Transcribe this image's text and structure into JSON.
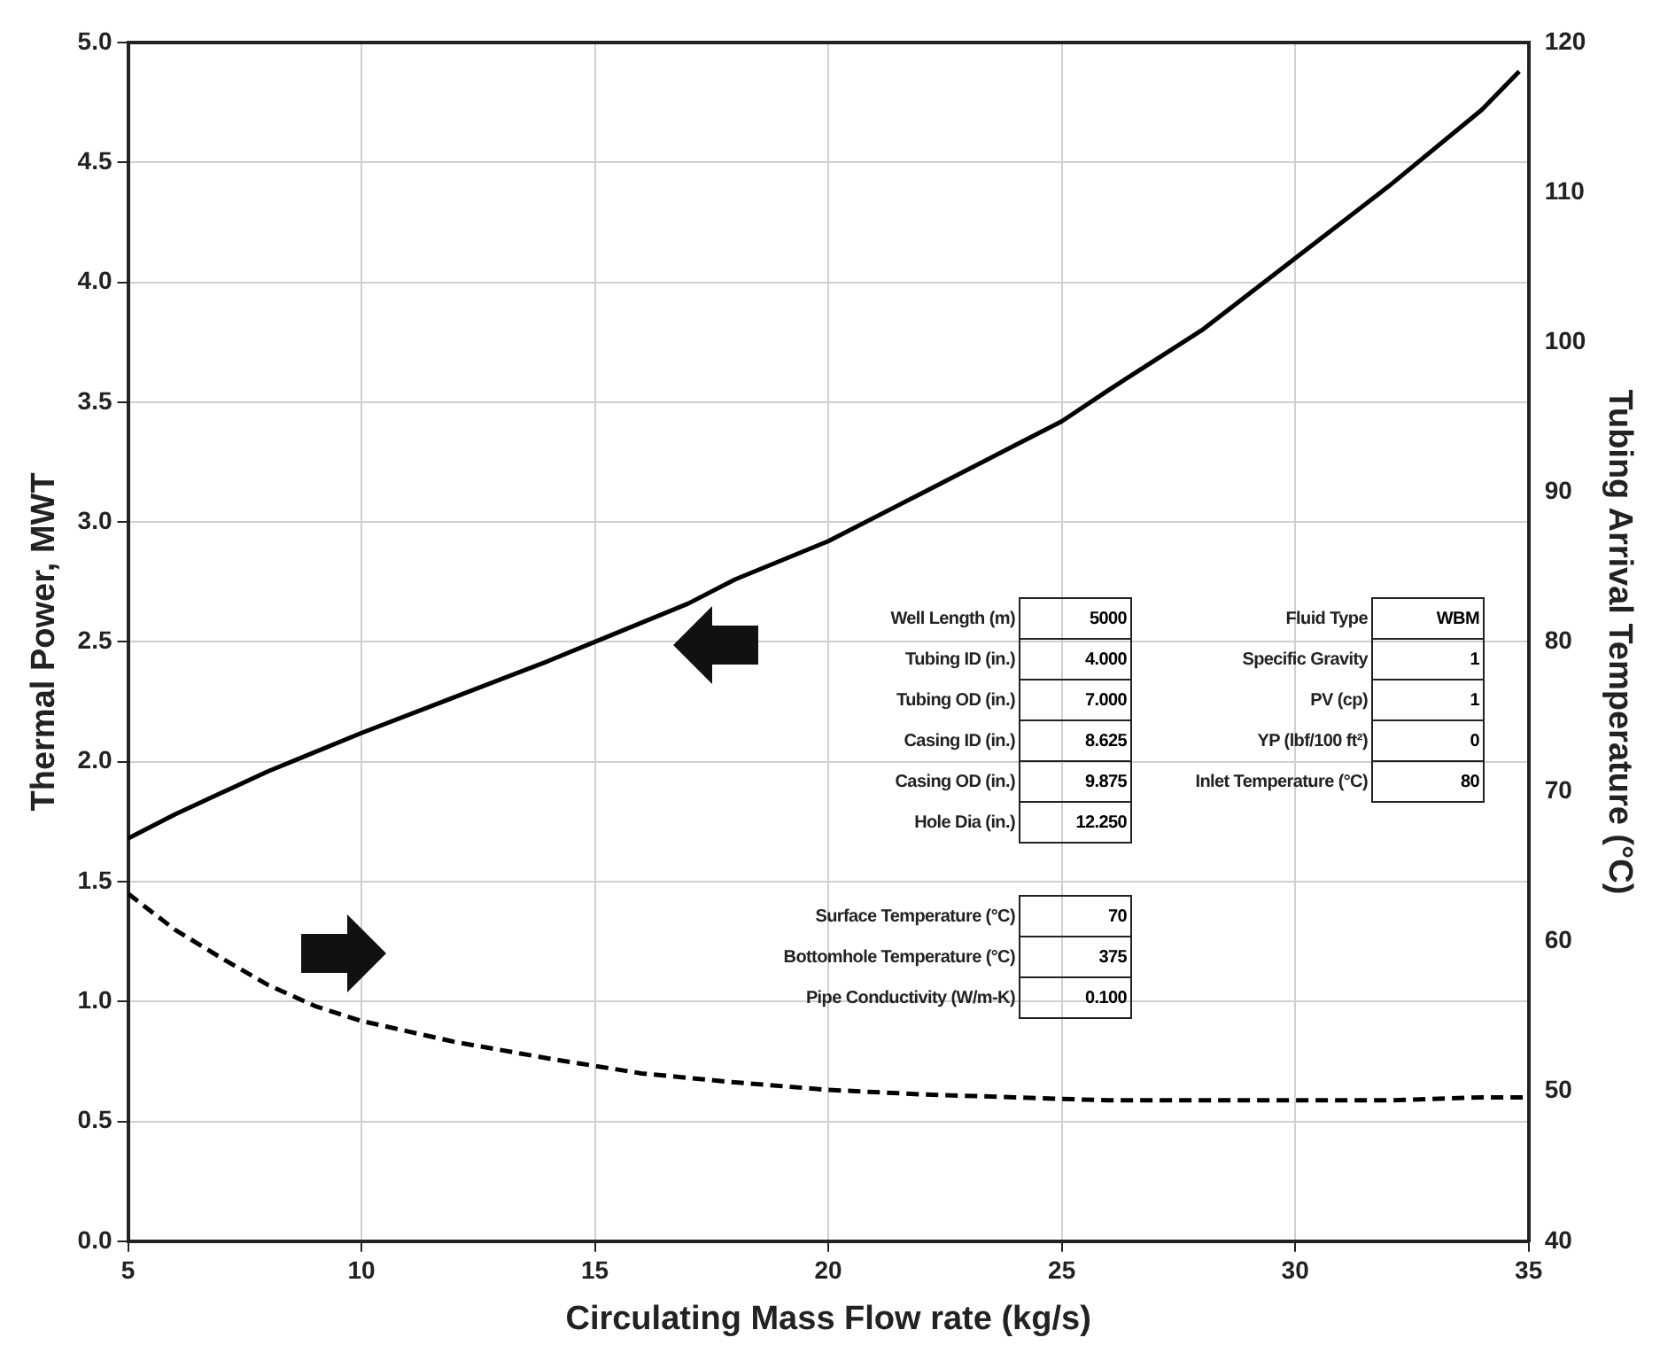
{
  "chart_data": {
    "type": "line",
    "xlabel": "Circulating Mass Flow rate (kg/s)",
    "ylabel": "Thermal Power, MWT",
    "y2label": "Tubing Arrival Temperature (°C)",
    "xlim": [
      5,
      35
    ],
    "xticks": [
      5,
      10,
      15,
      20,
      25,
      30,
      35
    ],
    "ylim": [
      0,
      5
    ],
    "yticks": [
      {
        "value": 0,
        "label": "0.0"
      },
      {
        "value": 0.5,
        "label": "0.5"
      },
      {
        "value": 1,
        "label": "1.0"
      },
      {
        "value": 1.5,
        "label": "1.5"
      },
      {
        "value": 2,
        "label": "2.0"
      },
      {
        "value": 2.5,
        "label": "2.5"
      },
      {
        "value": 3,
        "label": "3.0"
      },
      {
        "value": 3.5,
        "label": "3.5"
      },
      {
        "value": 4,
        "label": "4.0"
      },
      {
        "value": 4.5,
        "label": "4.5"
      },
      {
        "value": 5,
        "label": "5.0"
      }
    ],
    "y2lim": [
      40,
      120
    ],
    "y2ticks": [
      40,
      50,
      60,
      70,
      80,
      90,
      100,
      110,
      120
    ],
    "grid": true,
    "legend": false,
    "marker": "none",
    "series": [
      {
        "color": "#000000",
        "line_style": "solid",
        "x": [
          5,
          6,
          7,
          8,
          9,
          10,
          12,
          14,
          15,
          17,
          18,
          20,
          22,
          24,
          25,
          26,
          28,
          30,
          32,
          34,
          34.8
        ],
        "values": [
          1.68,
          1.78,
          1.87,
          1.96,
          2.04,
          2.12,
          2.27,
          2.42,
          2.5,
          2.66,
          2.76,
          2.92,
          3.12,
          3.32,
          3.42,
          3.55,
          3.8,
          4.1,
          4.4,
          4.72,
          4.88
        ]
      },
      {
        "color": "#000000",
        "line_style": "dashed",
        "axis": "y2",
        "x": [
          5,
          6,
          7,
          8,
          9,
          10,
          12,
          14,
          16,
          18,
          20,
          22,
          24,
          26,
          28,
          30,
          32,
          34,
          35
        ],
        "values": [
          63.2,
          60.8,
          58.9,
          57.1,
          55.7,
          54.7,
          53.3,
          52.2,
          51.2,
          50.6,
          50.1,
          49.8,
          49.6,
          49.4,
          49.4,
          49.4,
          49.4,
          49.6,
          49.6
        ]
      }
    ],
    "annotations": [
      "Well Length (m)",
      "5000",
      "Tubing ID (in.)",
      "4.000",
      "Tubing OD (in.)",
      "7.000",
      "Casing ID (in.)",
      "8.625",
      "Casing OD (in.)",
      "9.875",
      "Hole Dia (in.)",
      "12.250",
      "Fluid Type",
      "WBM",
      "Specific Gravity",
      "1",
      "PV (cp)",
      "1",
      "YP (lbf/100 ft²)",
      "0",
      "Inlet Temperature (°C)",
      "80",
      "Surface Temperature (°C)",
      "70",
      "Bottomhole Temperature (°C)",
      "375",
      "Pipe Conductivity (W/m-K)",
      "0.100"
    ]
  }
}
